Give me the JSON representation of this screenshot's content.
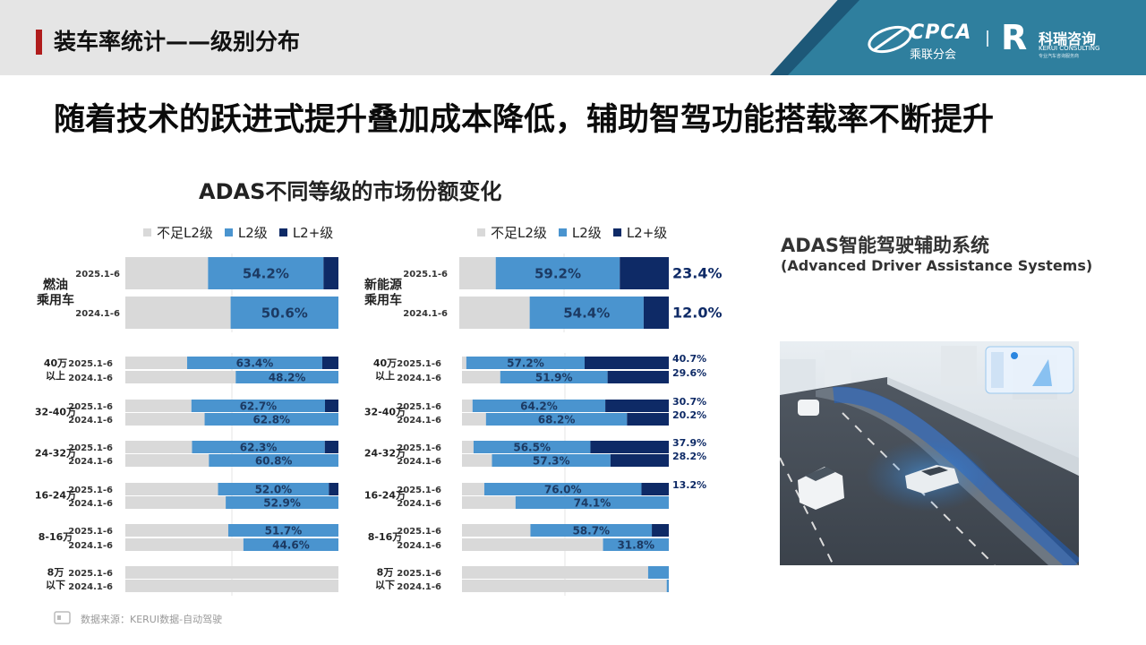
{
  "header": {
    "title": "装车率统计——级别分布",
    "logo_cpca_text": "CPCA",
    "logo_cpca_sub": "乘联分会",
    "logo_kr_letter": "R",
    "logo_kr_name": "科瑞咨询",
    "logo_kr_en": "KERUI CONSULTING",
    "logo_kr_tag": "专业汽车咨询服务商"
  },
  "main_title": "随着技术的跃进式提升叠加成本降低，辅助智驾功能搭载率不断提升",
  "chart_title": "ADAS不同等级的市场份额变化",
  "legend": [
    "不足L2级",
    "L2级",
    "L2+级"
  ],
  "adas": {
    "title": "ADAS智能驾驶辅助系统",
    "subtitle": "(Advanced Driver Assistance Systems)"
  },
  "source": "数据来源：KERUI数据-自动驾驶",
  "colors": {
    "below_l2": "#d9d9d9",
    "l2": "#4a94cf",
    "l2plus": "#0e2a66",
    "accent": "#b01c1c"
  },
  "chart_data": [
    {
      "type": "bar",
      "stacked": true,
      "orientation": "horizontal",
      "normalized": "percent",
      "series_names": [
        "不足L2级",
        "L2级",
        "L2+级"
      ],
      "groups": [
        {
          "label": "燃油\n乘用车",
          "rows": [
            {
              "period": "2025.1-6",
              "values": [
                38.8,
                54.2,
                7.0
              ],
              "l2_label": "54.2%"
            },
            {
              "period": "2024.1-6",
              "values": [
                49.4,
                50.6,
                0
              ],
              "l2_label": "50.6%"
            }
          ]
        }
      ]
    },
    {
      "type": "bar",
      "stacked": true,
      "orientation": "horizontal",
      "normalized": "percent",
      "series_names": [
        "不足L2级",
        "L2级",
        "L2+级"
      ],
      "groups": [
        {
          "label": "40万\n以上",
          "rows": [
            {
              "period": "2025.1-6",
              "values": [
                29.0,
                63.4,
                7.6
              ],
              "l2_label": "63.4%"
            },
            {
              "period": "2024.1-6",
              "values": [
                51.8,
                48.2,
                0
              ],
              "l2_label": "48.2%"
            }
          ]
        },
        {
          "label": "32-40万",
          "rows": [
            {
              "period": "2025.1-6",
              "values": [
                31.0,
                62.7,
                6.3
              ],
              "l2_label": "62.7%"
            },
            {
              "period": "2024.1-6",
              "values": [
                37.2,
                62.8,
                0
              ],
              "l2_label": "62.8%"
            }
          ]
        },
        {
          "label": "24-32万",
          "rows": [
            {
              "period": "2025.1-6",
              "values": [
                31.3,
                62.3,
                6.4
              ],
              "l2_label": "62.3%"
            },
            {
              "period": "2024.1-6",
              "values": [
                39.2,
                60.8,
                0
              ],
              "l2_label": "60.8%"
            }
          ]
        },
        {
          "label": "16-24万",
          "rows": [
            {
              "period": "2025.1-6",
              "values": [
                43.5,
                52.0,
                4.5
              ],
              "l2_label": "52.0%"
            },
            {
              "period": "2024.1-6",
              "values": [
                47.1,
                52.9,
                0
              ],
              "l2_label": "52.9%"
            }
          ]
        },
        {
          "label": "8-16万",
          "rows": [
            {
              "period": "2025.1-6",
              "values": [
                48.3,
                51.7,
                0
              ],
              "l2_label": "51.7%"
            },
            {
              "period": "2024.1-6",
              "values": [
                55.4,
                44.6,
                0
              ],
              "l2_label": "44.6%"
            }
          ]
        },
        {
          "label": "8万\n以下",
          "rows": [
            {
              "period": "2025.1-6",
              "values": [
                100,
                0,
                0
              ],
              "l2_label": ""
            },
            {
              "period": "2024.1-6",
              "values": [
                100,
                0,
                0
              ],
              "l2_label": ""
            }
          ]
        }
      ]
    },
    {
      "type": "bar",
      "stacked": true,
      "orientation": "horizontal",
      "normalized": "percent",
      "series_names": [
        "不足L2级",
        "L2级",
        "L2+级"
      ],
      "groups": [
        {
          "label": "新能源\n乘用车",
          "rows": [
            {
              "period": "2025.1-6",
              "values": [
                17.4,
                59.2,
                23.4
              ],
              "l2_label": "59.2%",
              "l2plus_label": "23.4%"
            },
            {
              "period": "2024.1-6",
              "values": [
                33.6,
                54.4,
                12.0
              ],
              "l2_label": "54.4%",
              "l2plus_label": "12.0%"
            }
          ]
        }
      ]
    },
    {
      "type": "bar",
      "stacked": true,
      "orientation": "horizontal",
      "normalized": "percent",
      "series_names": [
        "不足L2级",
        "L2级",
        "L2+级"
      ],
      "groups": [
        {
          "label": "40万\n以上",
          "rows": [
            {
              "period": "2025.1-6",
              "values": [
                2.1,
                57.2,
                40.7
              ],
              "l2_label": "57.2%",
              "l2plus_label": "40.7%"
            },
            {
              "period": "2024.1-6",
              "values": [
                18.5,
                51.9,
                29.6
              ],
              "l2_label": "51.9%",
              "l2plus_label": "29.6%"
            }
          ]
        },
        {
          "label": "32-40万",
          "rows": [
            {
              "period": "2025.1-6",
              "values": [
                5.1,
                64.2,
                30.7
              ],
              "l2_label": "64.2%",
              "l2plus_label": "30.7%"
            },
            {
              "period": "2024.1-6",
              "values": [
                11.6,
                68.2,
                20.2
              ],
              "l2_label": "68.2%",
              "l2plus_label": "20.2%"
            }
          ]
        },
        {
          "label": "24-32万",
          "rows": [
            {
              "period": "2025.1-6",
              "values": [
                5.6,
                56.5,
                37.9
              ],
              "l2_label": "56.5%",
              "l2plus_label": "37.9%"
            },
            {
              "period": "2024.1-6",
              "values": [
                14.5,
                57.3,
                28.2
              ],
              "l2_label": "57.3%",
              "l2plus_label": "28.2%"
            }
          ]
        },
        {
          "label": "16-24万",
          "rows": [
            {
              "period": "2025.1-6",
              "values": [
                10.8,
                76.0,
                13.2
              ],
              "l2_label": "76.0%",
              "l2plus_label": "13.2%"
            },
            {
              "period": "2024.1-6",
              "values": [
                25.9,
                74.1,
                0
              ],
              "l2_label": "74.1%"
            }
          ]
        },
        {
          "label": "8-16万",
          "rows": [
            {
              "period": "2025.1-6",
              "values": [
                33.1,
                58.7,
                8.2
              ],
              "l2_label": "58.7%"
            },
            {
              "period": "2024.1-6",
              "values": [
                68.2,
                31.8,
                0
              ],
              "l2_label": "31.8%"
            }
          ]
        },
        {
          "label": "8万\n以下",
          "rows": [
            {
              "period": "2025.1-6",
              "values": [
                90.0,
                10.0,
                0
              ],
              "l2_label": ""
            },
            {
              "period": "2024.1-6",
              "values": [
                99.0,
                1.0,
                0
              ],
              "l2_label": ""
            }
          ]
        }
      ]
    }
  ]
}
